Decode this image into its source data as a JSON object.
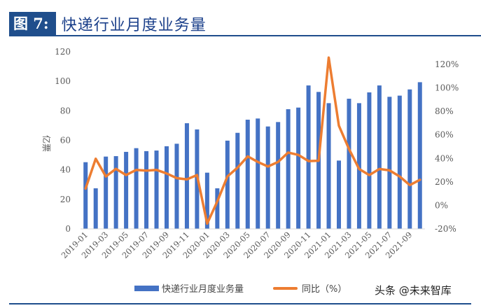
{
  "header": {
    "figure_label": "图 7:",
    "title": "快递行业月度业务量"
  },
  "legend": {
    "bar_label": "快递行业月度业务量",
    "line_label": "同比（%）"
  },
  "watermark": "头条 @未来智库",
  "colors": {
    "bar": "#4472c4",
    "line": "#ed7d31",
    "title_bg": "#1f4e8c",
    "axis_text": "#595959"
  },
  "chart_data": {
    "type": "bar+line",
    "title": "快递行业月度业务量",
    "xlabel": "",
    "ylabel": "亿票",
    "y2label": "同比（%）",
    "ylim": [
      0,
      120
    ],
    "y2lim": [
      -20,
      120
    ],
    "yticks": [
      0,
      20,
      40,
      60,
      80,
      100,
      120
    ],
    "y2ticks": [
      "-20%",
      "0%",
      "20%",
      "40%",
      "60%",
      "80%",
      "100%",
      "120%"
    ],
    "grid": false,
    "legend_position": "bottom",
    "categories": [
      "2019-01",
      "2019-02",
      "2019-03",
      "2019-04",
      "2019-05",
      "2019-06",
      "2019-07",
      "2019-08",
      "2019-09",
      "2019-10",
      "2019-11",
      "2019-12",
      "2020-01",
      "2020-02",
      "2020-03",
      "2020-04",
      "2020-05",
      "2020-06",
      "2020-07",
      "2020-08",
      "2020-09",
      "2020-10",
      "2020-11",
      "2020-12",
      "2021-01",
      "2021-02",
      "2021-03",
      "2021-04",
      "2021-05",
      "2021-06",
      "2021-07",
      "2021-08",
      "2021-09",
      "2021-10"
    ],
    "tick_labels": [
      "2019-01",
      "2019-03",
      "2019-05",
      "2019-07",
      "2019-09",
      "2019-11",
      "2020-01",
      "2020-03",
      "2020-05",
      "2020-07",
      "2020-09",
      "2020-11",
      "2021-01",
      "2021-03",
      "2021-05",
      "2021-07",
      "2021-09"
    ],
    "series": [
      {
        "name": "快递行业月度业务量",
        "axis": "left",
        "type": "bar",
        "values": [
          45.2,
          27.5,
          49.0,
          49.3,
          52.2,
          54.7,
          52.7,
          53.1,
          56.0,
          57.7,
          71.6,
          67.4,
          38.1,
          27.5,
          59.8,
          65.1,
          74.0,
          74.8,
          69.4,
          72.4,
          81.1,
          82.2,
          97.2,
          92.8,
          85.2,
          46.3,
          88.2,
          85.2,
          92.5,
          97.2,
          89.5,
          90.3,
          94.5,
          99.4
        ]
      },
      {
        "name": "同比（%）",
        "axis": "right",
        "type": "line",
        "values": [
          14.3,
          39.7,
          24.6,
          31.1,
          25.8,
          30.2,
          29.6,
          30.2,
          27.2,
          23.2,
          22.2,
          25.8,
          -15.5,
          3.4,
          24.6,
          32.1,
          41.7,
          37.0,
          33.1,
          37.0,
          45.0,
          43.0,
          37.7,
          38.0,
          125.8,
          67.9,
          48.0,
          31.0,
          25.8,
          31.0,
          29.8,
          24.6,
          17.3,
          21.8
        ]
      }
    ]
  }
}
